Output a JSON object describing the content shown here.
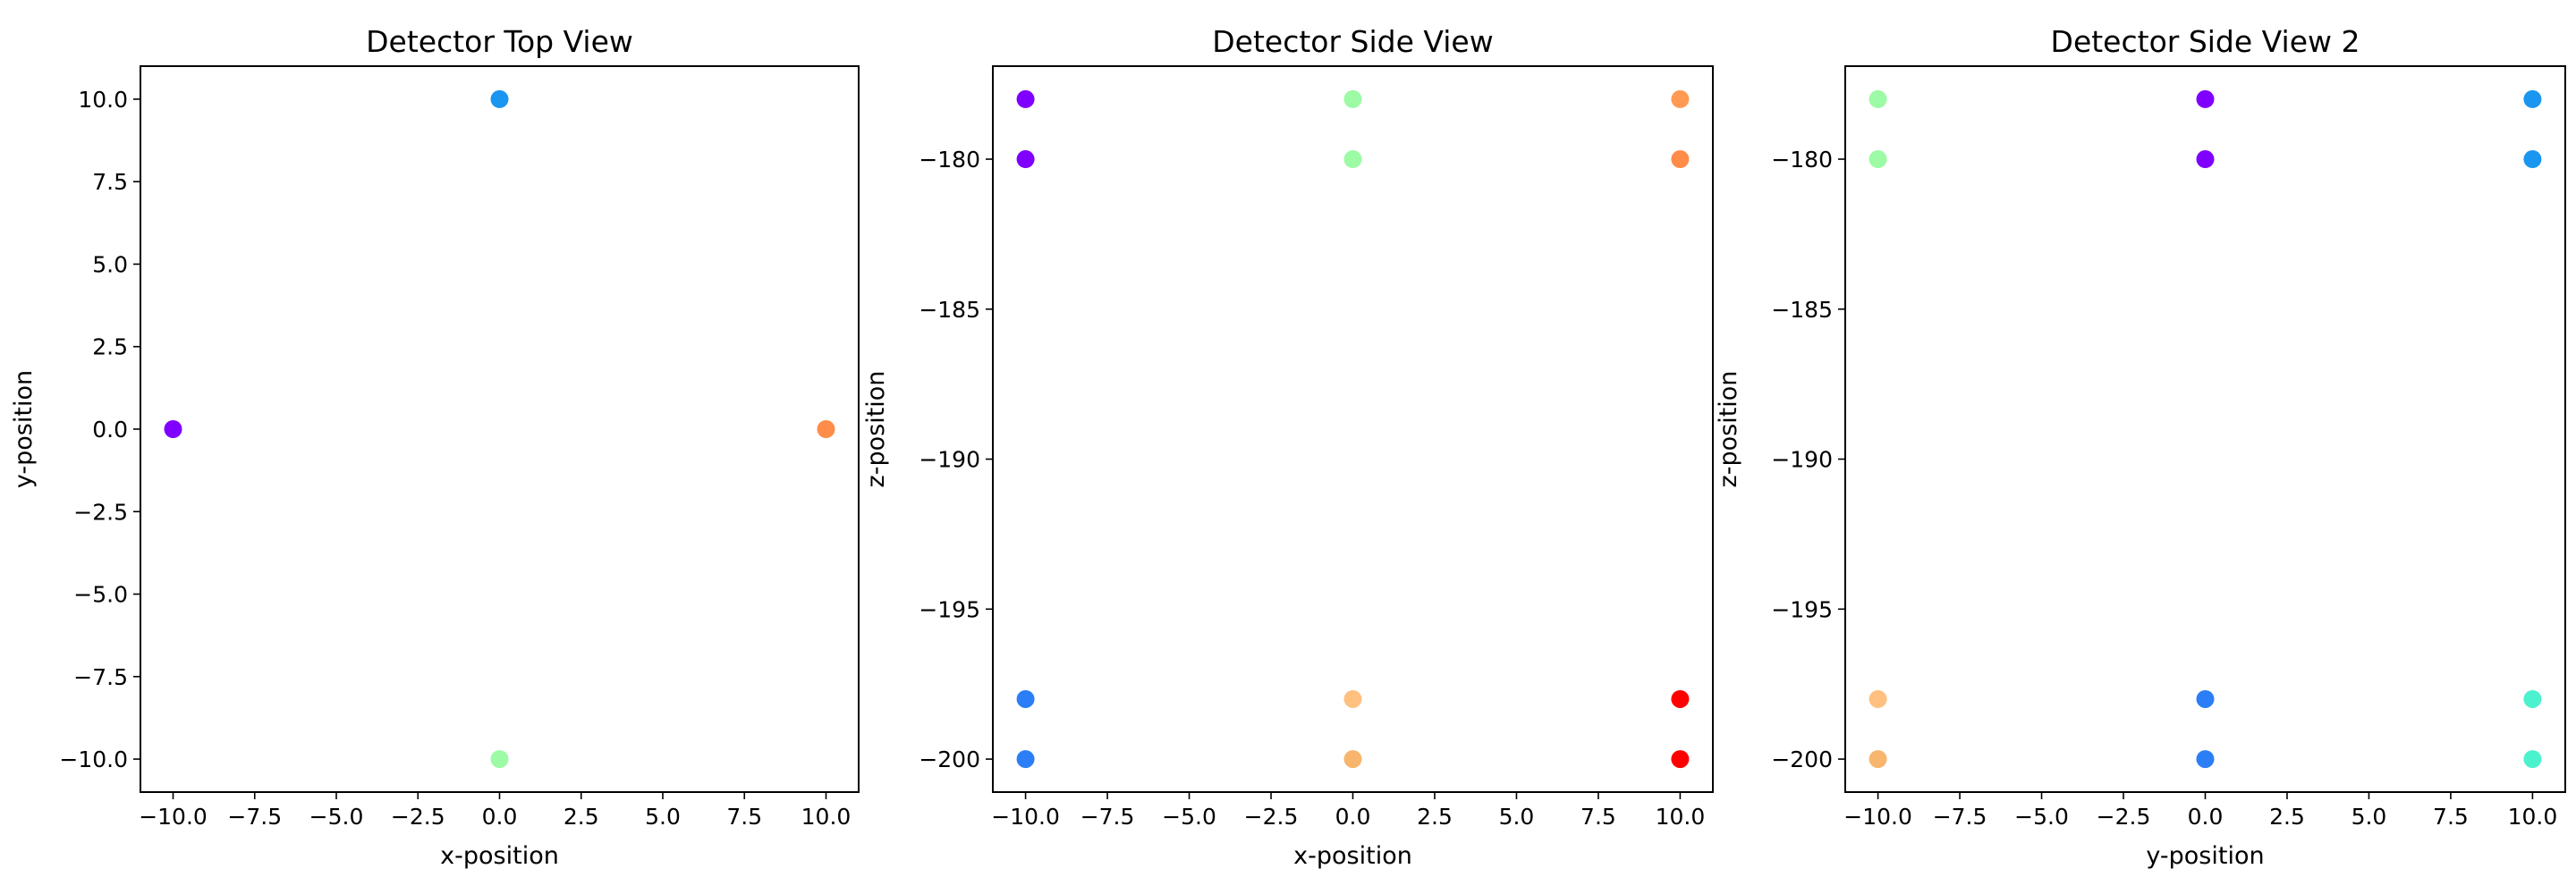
{
  "chart_data": [
    {
      "type": "scatter",
      "title": "Detector Top View",
      "xlabel": "x-position",
      "ylabel": "y-position",
      "xlim": [
        -11,
        11
      ],
      "ylim": [
        -11,
        11
      ],
      "xticks": [
        -10.0,
        -7.5,
        -5.0,
        -2.5,
        0.0,
        2.5,
        5.0,
        7.5,
        10.0
      ],
      "xtick_labels": [
        "−10.0",
        "−7.5",
        "−5.0",
        "−2.5",
        "0.0",
        "2.5",
        "5.0",
        "7.5",
        "10.0"
      ],
      "yticks": [
        10.0,
        7.5,
        5.0,
        2.5,
        0.0,
        -2.5,
        -5.0,
        -7.5,
        -10.0
      ],
      "ytick_labels": [
        "10.0",
        "7.5",
        "5.0",
        "2.5",
        "0.0",
        "−2.5",
        "−5.0",
        "−7.5",
        "−10.0"
      ],
      "grid": false,
      "points": [
        {
          "x": -10,
          "y": 0,
          "color": "#8000ff"
        },
        {
          "x": 0,
          "y": 10,
          "color": "#1a96f0"
        },
        {
          "x": 0,
          "y": -10,
          "color": "#9cfba4"
        },
        {
          "x": 10,
          "y": 0,
          "color": "#ff8c49"
        }
      ]
    },
    {
      "type": "scatter",
      "title": "Detector Side View",
      "xlabel": "x-position",
      "ylabel": "z-position",
      "xlim": [
        -11,
        11
      ],
      "ylim": [
        -201.1,
        -176.9
      ],
      "xticks": [
        -10.0,
        -7.5,
        -5.0,
        -2.5,
        0.0,
        2.5,
        5.0,
        7.5,
        10.0
      ],
      "xtick_labels": [
        "−10.0",
        "−7.5",
        "−5.0",
        "−2.5",
        "0.0",
        "2.5",
        "5.0",
        "7.5",
        "10.0"
      ],
      "yticks": [
        -180,
        -185,
        -190,
        -195,
        -200
      ],
      "ytick_labels": [
        "−180",
        "−185",
        "−190",
        "−195",
        "−200"
      ],
      "grid": false,
      "points": [
        {
          "x": -10,
          "y": -178,
          "color": "#8000ff"
        },
        {
          "x": -10,
          "y": -180,
          "color": "#8000ff"
        },
        {
          "x": -10,
          "y": -198,
          "color": "#2c7ef7"
        },
        {
          "x": -10,
          "y": -200,
          "color": "#2c7ef7"
        },
        {
          "x": 0,
          "y": -178,
          "color": "#9cfba4"
        },
        {
          "x": 0,
          "y": -180,
          "color": "#9cfba4"
        },
        {
          "x": 0,
          "y": -198,
          "color": "#ffc080"
        },
        {
          "x": 0,
          "y": -200,
          "color": "#f8b56d"
        },
        {
          "x": 10,
          "y": -178,
          "color": "#ff9a52"
        },
        {
          "x": 10,
          "y": -180,
          "color": "#ff8c49"
        },
        {
          "x": 10,
          "y": -198,
          "color": "#ff0000"
        },
        {
          "x": 10,
          "y": -200,
          "color": "#ff0000"
        }
      ]
    },
    {
      "type": "scatter",
      "title": "Detector Side View 2",
      "xlabel": "y-position",
      "ylabel": "z-position",
      "xlim": [
        -11,
        11
      ],
      "ylim": [
        -201.1,
        -176.9
      ],
      "xticks": [
        -10.0,
        -7.5,
        -5.0,
        -2.5,
        0.0,
        2.5,
        5.0,
        7.5,
        10.0
      ],
      "xtick_labels": [
        "−10.0",
        "−7.5",
        "−5.0",
        "−2.5",
        "0.0",
        "2.5",
        "5.0",
        "7.5",
        "10.0"
      ],
      "yticks": [
        -180,
        -185,
        -190,
        -195,
        -200
      ],
      "ytick_labels": [
        "−180",
        "−185",
        "−190",
        "−195",
        "−200"
      ],
      "grid": false,
      "points": [
        {
          "x": -10,
          "y": -178,
          "color": "#9cfba4"
        },
        {
          "x": -10,
          "y": -180,
          "color": "#9cfba4"
        },
        {
          "x": -10,
          "y": -198,
          "color": "#ffc080"
        },
        {
          "x": -10,
          "y": -200,
          "color": "#f8b56d"
        },
        {
          "x": 0,
          "y": -178,
          "color": "#8000ff"
        },
        {
          "x": 0,
          "y": -180,
          "color": "#8000ff"
        },
        {
          "x": 0,
          "y": -198,
          "color": "#2c7ef7"
        },
        {
          "x": 0,
          "y": -200,
          "color": "#2c7ef7"
        },
        {
          "x": 10,
          "y": -178,
          "color": "#1a96f0"
        },
        {
          "x": 10,
          "y": -180,
          "color": "#1a96f0"
        },
        {
          "x": 10,
          "y": -198,
          "color": "#4cf2ce"
        },
        {
          "x": 10,
          "y": -200,
          "color": "#4cf2ce"
        }
      ]
    }
  ]
}
